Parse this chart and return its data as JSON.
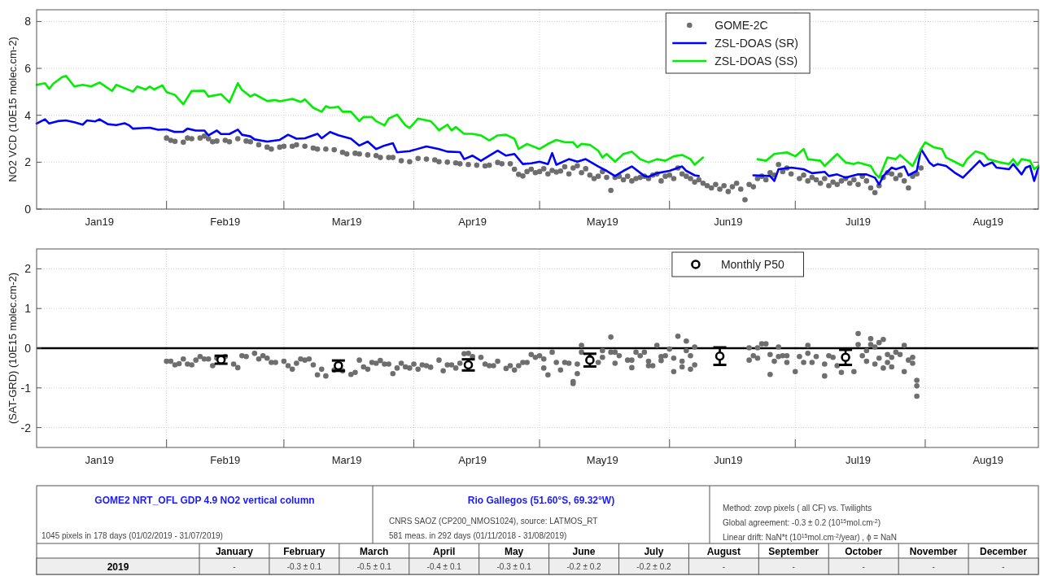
{
  "chart_data": [
    {
      "type": "line",
      "ylabel": "NO2 VCD (10E15 molec.cm-2)",
      "xlim": [
        "2019-01-01",
        "2019-08-28"
      ],
      "xticks": [
        {
          "value": "2019-01-16",
          "label": "Jan19"
        },
        {
          "value": "2019-02-01",
          "label": null
        },
        {
          "value": "2019-02-15",
          "label": "Feb19"
        },
        {
          "value": "2019-03-01",
          "label": null
        },
        {
          "value": "2019-03-16",
          "label": "Mar19"
        },
        {
          "value": "2019-04-01",
          "label": null
        },
        {
          "value": "2019-04-15",
          "label": "Apr19"
        },
        {
          "value": "2019-05-01",
          "label": null
        },
        {
          "value": "2019-05-16",
          "label": "May19"
        },
        {
          "value": "2019-06-01",
          "label": null
        },
        {
          "value": "2019-06-15",
          "label": "Jun19"
        },
        {
          "value": "2019-07-01",
          "label": null
        },
        {
          "value": "2019-07-16",
          "label": "Jul19"
        },
        {
          "value": "2019-08-01",
          "label": null
        },
        {
          "value": "2019-08-16",
          "label": "Aug19"
        }
      ],
      "ylim": [
        0,
        8.5
      ],
      "yticks": [
        0,
        2,
        4,
        6,
        8
      ],
      "grid": true,
      "legend": "top",
      "series": [
        {
          "name": "GOME-2C",
          "type": "scatter",
          "marker": "circle",
          "color": "#6e6e6e",
          "x": [
            "2019-02-01",
            "2019-02-02",
            "2019-02-03",
            "2019-02-05",
            "2019-02-06",
            "2019-02-07",
            "2019-02-09",
            "2019-02-10",
            "2019-02-11",
            "2019-02-12",
            "2019-02-13",
            "2019-02-15",
            "2019-02-16",
            "2019-02-18",
            "2019-02-20",
            "2019-02-21",
            "2019-02-23",
            "2019-02-25",
            "2019-02-26",
            "2019-02-28",
            "2019-03-01",
            "2019-03-03",
            "2019-03-04",
            "2019-03-06",
            "2019-03-08",
            "2019-03-09",
            "2019-03-11",
            "2019-03-13",
            "2019-03-15",
            "2019-03-16",
            "2019-03-18",
            "2019-03-19",
            "2019-03-21",
            "2019-03-23",
            "2019-03-24",
            "2019-03-26",
            "2019-03-27",
            "2019-03-29",
            "2019-03-31",
            "2019-04-02",
            "2019-04-04",
            "2019-04-06",
            "2019-04-07",
            "2019-04-09",
            "2019-04-11",
            "2019-04-12",
            "2019-04-14",
            "2019-04-16",
            "2019-04-18",
            "2019-04-19",
            "2019-04-21",
            "2019-04-22",
            "2019-04-24",
            "2019-04-25",
            "2019-04-26",
            "2019-04-27",
            "2019-04-28",
            "2019-04-29",
            "2019-04-30",
            "2019-05-01",
            "2019-05-02",
            "2019-05-03",
            "2019-05-04",
            "2019-05-05",
            "2019-05-06",
            "2019-05-07",
            "2019-05-08",
            "2019-05-09",
            "2019-05-10",
            "2019-05-11",
            "2019-05-12",
            "2019-05-13",
            "2019-05-14",
            "2019-05-15",
            "2019-05-16",
            "2019-05-17",
            "2019-05-18",
            "2019-05-19",
            "2019-05-20",
            "2019-05-21",
            "2019-05-22",
            "2019-05-23",
            "2019-05-24",
            "2019-05-25",
            "2019-05-26",
            "2019-05-27",
            "2019-05-28",
            "2019-05-29",
            "2019-05-30",
            "2019-05-31",
            "2019-06-01",
            "2019-06-02",
            "2019-06-03",
            "2019-06-04",
            "2019-06-05",
            "2019-06-06",
            "2019-06-07",
            "2019-06-08",
            "2019-06-09",
            "2019-06-10",
            "2019-06-11",
            "2019-06-12",
            "2019-06-13",
            "2019-06-14",
            "2019-06-15",
            "2019-06-16",
            "2019-06-17",
            "2019-06-18",
            "2019-06-19",
            "2019-06-20",
            "2019-06-21",
            "2019-06-22",
            "2019-06-23",
            "2019-06-24",
            "2019-06-25",
            "2019-06-26",
            "2019-06-27",
            "2019-06-28",
            "2019-06-29",
            "2019-06-30",
            "2019-07-02",
            "2019-07-03",
            "2019-07-04",
            "2019-07-05",
            "2019-07-06",
            "2019-07-07",
            "2019-07-08",
            "2019-07-09",
            "2019-07-10",
            "2019-07-11",
            "2019-07-12",
            "2019-07-13",
            "2019-07-14",
            "2019-07-15",
            "2019-07-16",
            "2019-07-17",
            "2019-07-18",
            "2019-07-19",
            "2019-07-20",
            "2019-07-21",
            "2019-07-22",
            "2019-07-23",
            "2019-07-24",
            "2019-07-25",
            "2019-07-26",
            "2019-07-27",
            "2019-07-28",
            "2019-07-29",
            "2019-07-30",
            "2019-07-31"
          ],
          "values": [
            3.03,
            2.93,
            2.89,
            2.85,
            3.03,
            3.0,
            3.03,
            3.11,
            3.0,
            2.87,
            2.9,
            2.93,
            2.87,
            3.0,
            2.9,
            2.87,
            2.74,
            2.64,
            2.56,
            2.64,
            2.68,
            2.68,
            2.74,
            2.68,
            2.6,
            2.56,
            2.56,
            2.53,
            2.42,
            2.35,
            2.38,
            2.35,
            2.31,
            2.28,
            2.2,
            2.2,
            2.2,
            2.06,
            2.02,
            2.16,
            2.13,
            2.1,
            2.02,
            2.0,
            1.97,
            1.93,
            1.9,
            1.87,
            1.84,
            1.87,
            1.99,
            1.93,
            1.93,
            1.7,
            1.48,
            1.41,
            1.6,
            1.7,
            1.55,
            1.6,
            1.72,
            1.5,
            1.65,
            1.58,
            1.62,
            1.8,
            1.5,
            1.75,
            1.85,
            1.55,
            1.72,
            1.45,
            1.3,
            1.4,
            1.6,
            1.35,
            0.8,
            1.35,
            1.4,
            1.25,
            1.4,
            1.2,
            1.3,
            1.35,
            1.4,
            1.3,
            1.45,
            1.5,
            1.2,
            1.4,
            1.45,
            1.3,
            1.75,
            1.5,
            1.4,
            1.3,
            1.15,
            1.25,
            1.1,
            1.0,
            0.9,
            1.05,
            0.85,
            1.0,
            0.75,
            0.95,
            1.1,
            0.85,
            0.4,
            1.05,
            0.95,
            1.3,
            1.4,
            1.25,
            1.55,
            1.45,
            1.9,
            1.6,
            1.75,
            1.5,
            1.3,
            1.45,
            1.2,
            1.35,
            1.25,
            1.1,
            1.3,
            1.0,
            1.15,
            1.05,
            1.2,
            1.3,
            1.1,
            1.25,
            1.05,
            1.4,
            1.2,
            0.9,
            0.7,
            1.0,
            1.35,
            1.55,
            1.5,
            1.3,
            1.45,
            1.2,
            0.9,
            1.4,
            1.5,
            1.75
          ]
        },
        {
          "name": "ZSL-DOAS (SR)",
          "type": "line",
          "color": "#0000ff",
          "x": [
            "2019-01-01",
            "2019-01-03",
            "2019-01-04",
            "2019-01-06",
            "2019-01-08",
            "2019-01-10",
            "2019-01-12",
            "2019-01-13",
            "2019-01-15",
            "2019-01-16",
            "2019-01-18",
            "2019-01-20",
            "2019-01-22",
            "2019-01-23",
            "2019-01-24",
            "2019-01-26",
            "2019-01-28",
            "2019-01-30",
            "2019-02-01",
            "2019-02-03",
            "2019-02-05",
            "2019-02-06",
            "2019-02-08",
            "2019-02-10",
            "2019-02-11",
            "2019-02-13",
            "2019-02-14",
            "2019-02-16",
            "2019-02-18",
            "2019-02-19",
            "2019-02-21",
            "2019-02-22",
            "2019-02-25",
            "2019-02-28",
            "2019-03-02",
            "2019-03-04",
            "2019-03-06",
            "2019-03-09",
            "2019-03-10",
            "2019-03-12",
            "2019-03-14",
            "2019-03-17",
            "2019-03-19",
            "2019-03-21",
            "2019-03-23",
            "2019-03-25",
            "2019-03-27",
            "2019-03-28",
            "2019-03-31",
            "2019-04-04",
            "2019-04-07",
            "2019-04-09",
            "2019-04-12",
            "2019-04-13",
            "2019-04-15",
            "2019-04-17",
            "2019-04-19",
            "2019-04-21",
            "2019-04-23",
            "2019-04-25",
            "2019-04-27",
            "2019-04-29",
            "2019-05-01",
            "2019-05-03",
            "2019-05-04",
            "2019-05-05",
            "2019-05-08",
            "2019-05-10",
            "2019-05-12",
            "2019-05-15",
            "2019-05-17",
            "2019-05-19",
            "2019-05-21",
            "2019-05-23",
            "2019-05-26",
            "2019-05-27",
            "2019-05-29",
            "2019-06-01",
            "2019-06-04",
            "2019-06-05",
            "2019-06-07",
            "2019-06-08",
            "2019-06-15",
            "2019-06-21",
            "2019-06-25",
            "2019-06-26",
            "2019-06-27",
            "2019-06-30",
            "2019-07-03",
            "2019-07-05",
            "2019-07-08",
            "2019-07-09",
            "2019-07-11",
            "2019-07-13",
            "2019-07-16",
            "2019-07-18",
            "2019-07-20",
            "2019-07-21",
            "2019-07-22",
            "2019-07-24",
            "2019-07-25",
            "2019-07-27",
            "2019-07-28",
            "2019-07-30",
            "2019-07-31",
            "2019-08-02",
            "2019-08-03",
            "2019-08-04",
            "2019-08-06",
            "2019-08-08",
            "2019-08-10",
            "2019-08-14",
            "2019-08-15",
            "2019-08-17",
            "2019-08-18",
            "2019-08-21",
            "2019-08-22",
            "2019-08-24",
            "2019-08-25",
            "2019-08-26",
            "2019-08-27",
            "2019-08-28"
          ],
          "values": [
            3.65,
            3.83,
            3.65,
            3.75,
            3.78,
            3.7,
            3.6,
            3.78,
            3.74,
            3.83,
            3.62,
            3.58,
            3.66,
            3.58,
            3.43,
            3.45,
            3.47,
            3.38,
            3.4,
            3.29,
            3.3,
            3.43,
            3.35,
            3.35,
            3.14,
            3.35,
            3.2,
            3.2,
            3.39,
            3.17,
            3.1,
            2.97,
            2.88,
            2.95,
            3.17,
            3.0,
            3.02,
            3.21,
            3.02,
            3.29,
            3.15,
            3.0,
            2.71,
            2.88,
            2.56,
            2.71,
            2.81,
            2.42,
            2.47,
            2.67,
            2.56,
            2.45,
            2.43,
            2.13,
            2.28,
            2.06,
            2.28,
            2.49,
            2.28,
            2.35,
            1.92,
            1.95,
            2.02,
            1.92,
            2.39,
            1.89,
            2.13,
            2.02,
            2.13,
            1.82,
            1.63,
            1.41,
            1.63,
            1.82,
            1.41,
            1.38,
            1.53,
            1.63,
            1.82,
            1.63,
            1.44,
            1.41,
            null,
            1.44,
            1.41,
            1.2,
            1.7,
            1.77,
            1.7,
            1.53,
            1.59,
            1.41,
            1.48,
            1.34,
            1.48,
            1.48,
            1.34,
            1.05,
            1.41,
            1.77,
            1.7,
            1.82,
            1.44,
            1.63,
            2.56,
            1.99,
            1.84,
            1.92,
            1.84,
            1.56,
            1.34,
            2.06,
            1.84,
            1.99,
            1.77,
            1.7,
            1.92,
            1.48,
            1.77,
            1.84,
            1.2,
            1.77
          ]
        },
        {
          "name": "ZSL-DOAS (SS)",
          "type": "line",
          "color": "#00ee00",
          "x": [
            "2019-01-01",
            "2019-01-03",
            "2019-01-04",
            "2019-01-05",
            "2019-01-07",
            "2019-01-08",
            "2019-01-10",
            "2019-01-12",
            "2019-01-14",
            "2019-01-16",
            "2019-01-19",
            "2019-01-20",
            "2019-01-24",
            "2019-01-25",
            "2019-01-27",
            "2019-01-28",
            "2019-01-29",
            "2019-01-31",
            "2019-02-01",
            "2019-02-03",
            "2019-02-05",
            "2019-02-07",
            "2019-02-10",
            "2019-02-11",
            "2019-02-14",
            "2019-02-16",
            "2019-02-18",
            "2019-02-19",
            "2019-02-21",
            "2019-02-22",
            "2019-02-25",
            "2019-02-27",
            "2019-02-28",
            "2019-03-03",
            "2019-03-05",
            "2019-03-06",
            "2019-03-08",
            "2019-03-10",
            "2019-03-11",
            "2019-03-12",
            "2019-03-14",
            "2019-03-15",
            "2019-03-17",
            "2019-03-19",
            "2019-03-20",
            "2019-03-22",
            "2019-03-23",
            "2019-03-25",
            "2019-03-26",
            "2019-03-28",
            "2019-03-30",
            "2019-03-31",
            "2019-04-02",
            "2019-04-05",
            "2019-04-06",
            "2019-04-07",
            "2019-04-09",
            "2019-04-10",
            "2019-04-11",
            "2019-04-13",
            "2019-04-15",
            "2019-04-17",
            "2019-04-19",
            "2019-04-21",
            "2019-04-23",
            "2019-04-25",
            "2019-04-26",
            "2019-04-28",
            "2019-05-01",
            "2019-05-03",
            "2019-05-05",
            "2019-05-07",
            "2019-05-09",
            "2019-05-10",
            "2019-05-11",
            "2019-05-13",
            "2019-05-15",
            "2019-05-16",
            "2019-05-17",
            "2019-05-19",
            "2019-05-21",
            "2019-05-23",
            "2019-05-25",
            "2019-05-27",
            "2019-05-29",
            "2019-05-31",
            "2019-06-02",
            "2019-06-04",
            "2019-06-06",
            "2019-06-07",
            "2019-06-09",
            "2019-06-15",
            "2019-06-22",
            "2019-06-24",
            "2019-06-26",
            "2019-06-29",
            "2019-07-01",
            "2019-07-03",
            "2019-07-04",
            "2019-07-07",
            "2019-07-08",
            "2019-07-11",
            "2019-07-13",
            "2019-07-15",
            "2019-07-16",
            "2019-07-19",
            "2019-07-20",
            "2019-07-21",
            "2019-07-23",
            "2019-07-25",
            "2019-07-26",
            "2019-07-28",
            "2019-07-29",
            "2019-07-31",
            "2019-08-01",
            "2019-08-03",
            "2019-08-05",
            "2019-08-06",
            "2019-08-08",
            "2019-08-10",
            "2019-08-11",
            "2019-08-13",
            "2019-08-15",
            "2019-08-16",
            "2019-08-19",
            "2019-08-21",
            "2019-08-22",
            "2019-08-23",
            "2019-08-24",
            "2019-08-26",
            "2019-08-27",
            "2019-08-28"
          ],
          "values": [
            5.3,
            5.37,
            5.13,
            5.35,
            5.62,
            5.68,
            5.23,
            5.3,
            5.23,
            5.4,
            5.04,
            5.3,
            5.01,
            5.23,
            5.1,
            5.23,
            5.1,
            5.28,
            4.99,
            4.87,
            4.47,
            5.04,
            5.05,
            4.8,
            4.9,
            4.55,
            5.37,
            5.08,
            4.8,
            4.9,
            4.61,
            4.65,
            4.6,
            4.7,
            4.57,
            4.68,
            4.32,
            4.15,
            4.39,
            4.32,
            4.36,
            4.15,
            4.15,
            3.75,
            3.93,
            3.93,
            3.75,
            3.57,
            3.86,
            4.03,
            3.57,
            3.46,
            3.86,
            3.75,
            3.57,
            3.36,
            3.6,
            3.36,
            3.5,
            3.21,
            3.21,
            3.14,
            2.93,
            3.14,
            3.17,
            3.0,
            2.56,
            2.78,
            2.56,
            2.78,
            2.95,
            2.85,
            2.85,
            2.64,
            2.78,
            2.74,
            2.49,
            2.2,
            2.35,
            2.02,
            2.35,
            2.45,
            2.13,
            1.99,
            2.13,
            2.06,
            2.25,
            2.31,
            2.13,
            1.89,
            2.2,
            null,
            2.13,
            2.06,
            2.35,
            2.42,
            2.25,
            2.56,
            2.13,
            2.06,
            1.84,
            2.35,
            1.99,
            1.92,
            1.99,
            1.84,
            1.53,
            1.34,
            2.2,
            2.13,
            2.31,
            1.99,
            1.84,
            2.56,
            2.85,
            2.64,
            2.56,
            2.2,
            2.02,
            1.84,
            2.13,
            2.46,
            2.35,
            2.13,
            1.99,
            1.92,
            2.13,
            1.87,
            2.13,
            2.06,
            1.7,
            1.84
          ]
        }
      ]
    },
    {
      "type": "scatter",
      "ylabel": "(SAT-GRD) (10E15 molec.cm-2)",
      "xlim": [
        "2019-01-01",
        "2019-08-28"
      ],
      "xticks": [
        {
          "value": "2019-01-16",
          "label": "Jan19"
        },
        {
          "value": "2019-02-01",
          "label": null
        },
        {
          "value": "2019-02-15",
          "label": "Feb19"
        },
        {
          "value": "2019-03-01",
          "label": null
        },
        {
          "value": "2019-03-16",
          "label": "Mar19"
        },
        {
          "value": "2019-04-01",
          "label": null
        },
        {
          "value": "2019-04-15",
          "label": "Apr19"
        },
        {
          "value": "2019-05-01",
          "label": null
        },
        {
          "value": "2019-05-16",
          "label": "May19"
        },
        {
          "value": "2019-06-01",
          "label": null
        },
        {
          "value": "2019-06-15",
          "label": "Jun19"
        },
        {
          "value": "2019-07-01",
          "label": null
        },
        {
          "value": "2019-07-16",
          "label": "Jul19"
        },
        {
          "value": "2019-08-01",
          "label": null
        },
        {
          "value": "2019-08-16",
          "label": "Aug19"
        }
      ],
      "ylim": [
        -2.5,
        2.5
      ],
      "yticks": [
        -2,
        -1,
        0,
        1,
        2
      ],
      "grid": true,
      "legend": "top",
      "ref_lines": [
        {
          "axis": "y",
          "value": 0,
          "color": "#000000"
        }
      ],
      "series": [
        {
          "type": "scatter",
          "marker": "circle",
          "color": "#6e6e6e",
          "x": [
            "2019-02-01",
            "2019-02-02",
            "2019-02-03",
            "2019-02-04",
            "2019-02-05",
            "2019-02-06",
            "2019-02-07",
            "2019-02-08",
            "2019-02-09",
            "2019-02-10",
            "2019-02-11",
            "2019-02-12",
            "2019-02-13",
            "2019-02-15",
            "2019-02-17",
            "2019-02-18",
            "2019-02-19",
            "2019-02-20",
            "2019-02-22",
            "2019-02-23",
            "2019-02-24",
            "2019-02-25",
            "2019-02-26",
            "2019-02-27",
            "2019-03-01",
            "2019-03-02",
            "2019-03-03",
            "2019-03-04",
            "2019-03-05",
            "2019-03-06",
            "2019-03-07",
            "2019-03-08",
            "2019-03-09",
            "2019-03-10",
            "2019-03-11",
            "2019-03-13",
            "2019-03-15",
            "2019-03-17",
            "2019-03-18",
            "2019-03-19",
            "2019-03-20",
            "2019-03-21",
            "2019-03-22",
            "2019-03-23",
            "2019-03-24",
            "2019-03-25",
            "2019-03-26",
            "2019-03-27",
            "2019-03-28",
            "2019-03-29",
            "2019-03-30",
            "2019-03-31",
            "2019-04-01",
            "2019-04-02",
            "2019-04-03",
            "2019-04-04",
            "2019-04-05",
            "2019-04-07",
            "2019-04-08",
            "2019-04-09",
            "2019-04-10",
            "2019-04-11",
            "2019-04-12",
            "2019-04-13",
            "2019-04-14",
            "2019-04-15",
            "2019-04-17",
            "2019-04-18",
            "2019-04-19",
            "2019-04-20",
            "2019-04-21",
            "2019-04-23",
            "2019-04-24",
            "2019-04-25",
            "2019-04-26",
            "2019-04-27",
            "2019-04-28",
            "2019-04-29",
            "2019-04-30",
            "2019-05-01",
            "2019-05-02",
            "2019-05-02",
            "2019-05-03",
            "2019-05-04",
            "2019-05-05",
            "2019-05-06",
            "2019-05-07",
            "2019-05-08",
            "2019-05-09",
            "2019-05-09",
            "2019-05-10",
            "2019-05-10",
            "2019-05-11",
            "2019-05-11",
            "2019-05-13",
            "2019-05-15",
            "2019-05-16",
            "2019-05-16",
            "2019-05-18",
            "2019-05-18",
            "2019-05-19",
            "2019-05-19",
            "2019-05-20",
            "2019-05-22",
            "2019-05-23",
            "2019-05-23",
            "2019-05-24",
            "2019-05-25",
            "2019-05-26",
            "2019-05-27",
            "2019-05-27",
            "2019-05-28",
            "2019-05-29",
            "2019-05-30",
            "2019-05-30",
            "2019-05-31",
            "2019-06-01",
            "2019-06-02",
            "2019-06-02",
            "2019-06-03",
            "2019-06-04",
            "2019-06-04",
            "2019-06-05",
            "2019-06-05",
            "2019-06-06",
            "2019-06-06",
            "2019-06-07",
            "2019-06-07",
            "2019-06-20",
            "2019-06-20",
            "2019-06-21",
            "2019-06-22",
            "2019-06-22",
            "2019-06-23",
            "2019-06-24",
            "2019-06-25",
            "2019-06-25",
            "2019-06-26",
            "2019-06-27",
            "2019-06-27",
            "2019-06-28",
            "2019-06-29",
            "2019-06-29",
            "2019-07-01",
            "2019-07-02",
            "2019-07-03",
            "2019-07-04",
            "2019-07-04",
            "2019-07-05",
            "2019-07-06",
            "2019-07-08",
            "2019-07-08",
            "2019-07-09",
            "2019-07-10",
            "2019-07-11",
            "2019-07-12",
            "2019-07-15",
            "2019-07-16",
            "2019-07-16",
            "2019-07-17",
            "2019-07-18",
            "2019-07-18",
            "2019-07-19",
            "2019-07-19",
            "2019-07-20",
            "2019-07-20",
            "2019-07-21",
            "2019-07-21",
            "2019-07-22",
            "2019-07-22",
            "2019-07-23",
            "2019-07-23",
            "2019-07-24",
            "2019-07-24",
            "2019-07-25",
            "2019-07-26",
            "2019-07-27",
            "2019-07-27",
            "2019-07-28",
            "2019-07-29",
            "2019-07-29",
            "2019-07-30",
            "2019-07-30",
            "2019-07-30"
          ],
          "values": [
            -0.33,
            -0.33,
            -0.42,
            -0.39,
            -0.27,
            -0.4,
            -0.42,
            -0.3,
            -0.21,
            -0.27,
            -0.27,
            -0.44,
            -0.25,
            -0.21,
            -0.4,
            -0.49,
            -0.19,
            -0.21,
            -0.13,
            -0.27,
            -0.19,
            -0.25,
            -0.36,
            -0.36,
            -0.33,
            -0.44,
            -0.53,
            -0.38,
            -0.27,
            -0.3,
            -0.27,
            -0.42,
            -0.67,
            -0.53,
            -0.7,
            -0.55,
            -0.57,
            -0.66,
            -0.61,
            -0.3,
            -0.47,
            -0.53,
            -0.36,
            -0.38,
            -0.31,
            -0.4,
            -0.4,
            -0.64,
            -0.5,
            -0.38,
            -0.47,
            -0.5,
            -0.4,
            -0.53,
            -0.42,
            -0.44,
            -0.48,
            -0.3,
            -0.57,
            -0.42,
            -0.42,
            -0.5,
            -0.38,
            -0.14,
            -0.13,
            -0.21,
            -0.23,
            -0.4,
            -0.44,
            -0.44,
            -0.33,
            -0.51,
            -0.44,
            -0.55,
            -0.44,
            -0.36,
            -0.36,
            -0.16,
            -0.23,
            -0.19,
            -0.5,
            -0.27,
            -0.67,
            -0.1,
            -0.36,
            -0.55,
            -0.36,
            -0.38,
            -0.84,
            -0.89,
            -0.4,
            -0.64,
            0.07,
            -0.1,
            -0.23,
            -0.36,
            -0.23,
            -0.06,
            -0.1,
            0.28,
            -0.1,
            -0.38,
            -0.19,
            -0.3,
            -0.3,
            -0.49,
            -0.1,
            -0.19,
            -0.1,
            -0.33,
            -0.44,
            -0.44,
            0.07,
            -0.21,
            -0.31,
            -0.19,
            -0.02,
            -0.25,
            -0.59,
            0.3,
            -0.33,
            -0.47,
            0.18,
            -0.06,
            -0.19,
            -0.53,
            -0.42,
            0.03,
            0.01,
            -0.3,
            -0.19,
            -0.25,
            0.01,
            0.11,
            0.11,
            -0.16,
            -0.66,
            -0.33,
            0.03,
            -0.21,
            -0.19,
            -0.36,
            -0.19,
            -0.59,
            -0.21,
            -0.36,
            0.07,
            -0.13,
            -0.36,
            -0.21,
            -0.7,
            -0.4,
            -0.19,
            -0.23,
            -0.44,
            -0.61,
            -0.59,
            0.37,
            0.09,
            -0.19,
            -0.33,
            -0.06,
            0.24,
            0.09,
            -0.4,
            0.03,
            0.14,
            -0.25,
            0.22,
            -0.5,
            -0.16,
            -0.36,
            -0.47,
            -0.23,
            -0.1,
            -0.16,
            0.07,
            -0.59,
            -0.3,
            -0.38,
            -0.23,
            -0.81,
            -0.95,
            -1.21
          ]
        },
        {
          "name": "Monthly P50",
          "type": "scatter",
          "marker": "circle",
          "color": "#000000",
          "x": [
            "2019-02-14",
            "2019-03-14",
            "2019-04-14",
            "2019-05-13",
            "2019-06-13",
            "2019-07-13"
          ],
          "values": [
            -0.29,
            -0.44,
            -0.42,
            -0.3,
            -0.2,
            -0.23
          ],
          "errors": [
            0.1,
            0.13,
            0.14,
            0.16,
            0.22,
            0.19
          ]
        }
      ]
    },
    {
      "type": "other",
      "annotations": [
        "GOME2 NRT_OFL GDP 4.9 NO2 vertical column",
        "1045 pixels in 178 days (01/02/2019 - 31/07/2019)",
        "Rio Gallegos (51.60°S, 69.32°W)",
        "CNRS SAOZ (CP200_NMOS1024), source: LATMOS_RT",
        "581 meas. in 292 days (01/11/2018 - 31/08/2019)",
        "Method: zovp pixels ( all CF) vs. Twilights",
        "Global agreement: -0.3 ±  0.2 (10$^{15}$mol.cm$^{-2}$)",
        "Linear drift:  NaN*t (10$^{15}$mol.cm$^{-2}$/year) , ϕ =  NaN"
      ],
      "categories": [
        "January",
        "February",
        "March",
        "April",
        "May",
        "June",
        "July",
        "August",
        "September",
        "October",
        "November",
        "December"
      ],
      "y_categories": [
        "2019"
      ],
      "cell_labels": [
        [
          "-",
          "-0.3 ±  0.1",
          "-0.5 ±  0.1",
          "-0.4 ±  0.1",
          "-0.3 ±  0.1",
          "-0.2 ±  0.2",
          "-0.2 ±  0.2",
          "-",
          "-",
          "-",
          "-",
          "-"
        ]
      ]
    }
  ]
}
